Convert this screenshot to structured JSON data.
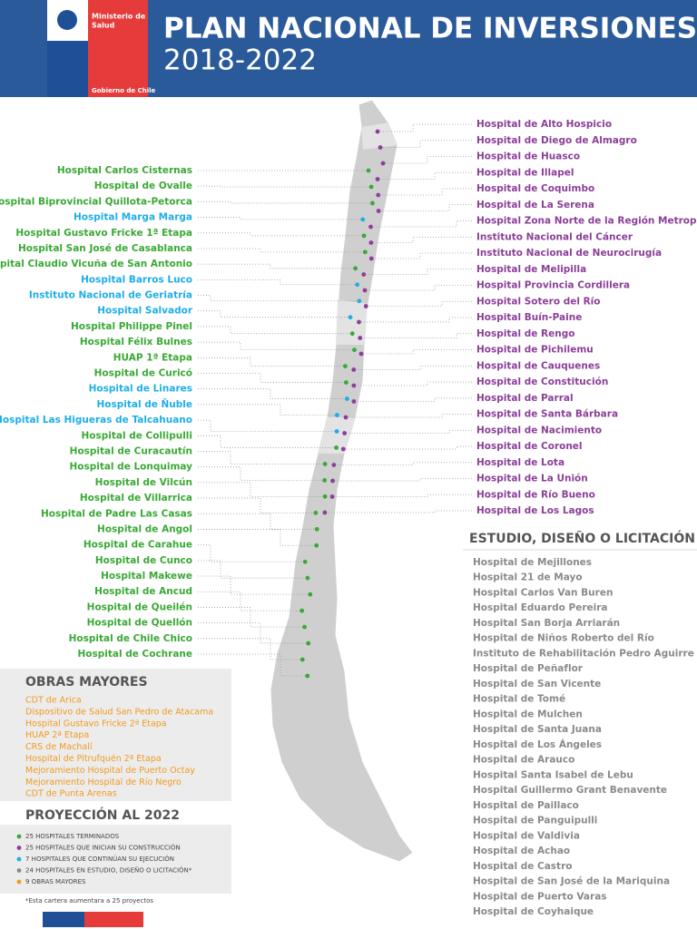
{
  "header": {
    "ministry_line1": "Ministerio de",
    "ministry_line2": "Salud",
    "government": "Gobierno de Chile",
    "title": "PLAN NACIONAL DE INVERSIONES",
    "subtitle": "2018-2022"
  },
  "left_list": [
    {
      "label": "Hospital Carlos Cisternas",
      "color": "#3aa935"
    },
    {
      "label": "Hospital de Ovalle",
      "color": "#3aa935"
    },
    {
      "label": "Hospital Biprovincial Quillota-Petorca",
      "color": "#3aa935"
    },
    {
      "label": "Hospital Marga Marga",
      "color": "#1eaee8"
    },
    {
      "label": "Hospital Gustavo Fricke 1ª Etapa",
      "color": "#3aa935"
    },
    {
      "label": "Hospital San José de Casablanca",
      "color": "#3aa935"
    },
    {
      "label": "Hospital Claudio Vicuña de San Antonio",
      "color": "#3aa935"
    },
    {
      "label": "Hospital Barros Luco",
      "color": "#1eaee8"
    },
    {
      "label": "Instituto Nacional de Geriatría",
      "color": "#1eaee8"
    },
    {
      "label": "Hospital Salvador",
      "color": "#1eaee8"
    },
    {
      "label": "Hospital Philippe Pinel",
      "color": "#3aa935"
    },
    {
      "label": "Hospital Félix Bulnes",
      "color": "#3aa935"
    },
    {
      "label": "HUAP 1ª Etapa",
      "color": "#3aa935"
    },
    {
      "label": "Hospital de Curicó",
      "color": "#3aa935"
    },
    {
      "label": "Hospital de Linares",
      "color": "#1eaee8"
    },
    {
      "label": "Hospital de Ñuble",
      "color": "#1eaee8"
    },
    {
      "label": "Hospital Las Higueras de Talcahuano",
      "color": "#1eaee8"
    },
    {
      "label": "Hospital de Collipulli",
      "color": "#3aa935"
    },
    {
      "label": "Hospital de Curacautín",
      "color": "#3aa935"
    },
    {
      "label": "Hospital de Lonquimay",
      "color": "#3aa935"
    },
    {
      "label": "Hospital de Vilcún",
      "color": "#3aa935"
    },
    {
      "label": "Hospital de Villarrica",
      "color": "#3aa935"
    },
    {
      "label": "Hospital de Padre Las Casas",
      "color": "#3aa935"
    },
    {
      "label": "Hospital de Angol",
      "color": "#3aa935"
    },
    {
      "label": "Hospital de Carahue",
      "color": "#3aa935"
    },
    {
      "label": "Hospital de Cunco",
      "color": "#3aa935"
    },
    {
      "label": "Hospital Makewe",
      "color": "#3aa935"
    },
    {
      "label": "Hospital de Ancud",
      "color": "#3aa935"
    },
    {
      "label": "Hospital de Queilén",
      "color": "#3aa935"
    },
    {
      "label": "Hospital de Quellón",
      "color": "#3aa935"
    },
    {
      "label": "Hospital de Chile Chico",
      "color": "#3aa935"
    },
    {
      "label": "Hospital de Cochrane",
      "color": "#3aa935"
    }
  ],
  "right_list": {
    "color": "#8b3f98",
    "items": [
      "Hospital de Alto Hospicio",
      "Hospital de Diego de Almagro",
      "Hospital de Huasco",
      "Hospital de Illapel",
      "Hospital de Coquimbo",
      "Hospital de La Serena",
      "Hospital Zona Norte de la Región Metropolitana",
      "Instituto Nacional del Cáncer",
      "Instituto Nacional de Neurocirugía",
      "Hospital de Melipilla",
      "Hospital Provincia Cordillera",
      "Hospital Sotero del Río",
      "Hospital Buín-Paine",
      "Hospital de Rengo",
      "Hospital de Pichilemu",
      "Hospital de Cauquenes",
      "Hospital de Constitución",
      "Hospital de Parral",
      "Hospital de Santa Bárbara",
      "Hospital de Nacimiento",
      "Hospital de Coronel",
      "Hospital de Lota",
      "Hospital de La Unión",
      "Hospital de Río Bueno",
      "Hospital de Los Lagos"
    ]
  },
  "study": {
    "title": "ESTUDIO, DISEÑO O LICITACIÓN",
    "color": "#8a8a8a",
    "items": [
      "Hospital de Mejillones",
      "Hospital 21 de Mayo",
      "Hospital Carlos Van Buren",
      "Hospital Eduardo Pereira",
      "Hospital San Borja Arriarán",
      "Hospital de Niños Roberto del Río",
      "Instituto de Rehabilitación Pedro Aguirre Cerda",
      "Hospital de Peñaflor",
      "Hospital de San Vicente",
      "Hospital de Tomé",
      "Hospital de Mulchen",
      "Hospital de Santa Juana",
      "Hospital de Los Ángeles",
      "Hospital de Arauco",
      "Hospital Santa Isabel de Lebu",
      "Hospital Guillermo Grant Benavente",
      "Hospital de Paillaco",
      "Hospital de Panguipulli",
      "Hospital de Valdivia",
      "Hospital de Achao",
      "Hospital de Castro",
      "Hospital de San José de la Mariquina",
      "Hospital de Puerto Varas",
      "Hospital de Coyhaique"
    ]
  },
  "major_works": {
    "title": "OBRAS MAYORES",
    "color": "#f29a1f",
    "items": [
      "CDT de Arica",
      "Dispositivo de Salud San Pedro de Atacama",
      "Hospital Gustavo Fricke 2ª Etapa",
      "HUAP 2ª Etapa",
      "CRS de Machalí",
      "Hospital de Pitrufquén 2ª Etapa",
      "Mejoramiento Hospital de Puerto Octay",
      "Mejoramiento Hospital de Río Negro",
      "CDT de Punta Arenas"
    ]
  },
  "projection": {
    "title": "PROYECCIÓN AL 2022",
    "items": [
      {
        "label": "25 HOSPITALES TERMINADOS",
        "color": "#3aa935"
      },
      {
        "label": "25 HOSPITALES QUE INICIAN SU CONSTRUCCIÓN",
        "color": "#8b3f98"
      },
      {
        "label": "7 HOSPITALES QUE CONTINÚAN SU EJECUCIÓN",
        "color": "#1eaee8"
      },
      {
        "label": "24 HOSPITALES EN ESTUDIO, DISEÑO O LICITACIÓN*",
        "color": "#8a8a8a"
      },
      {
        "label": "9 OBRAS MAYORES",
        "color": "#f29a1f"
      }
    ],
    "note": "*Esta cartera aumentara a 25 proyectos"
  }
}
